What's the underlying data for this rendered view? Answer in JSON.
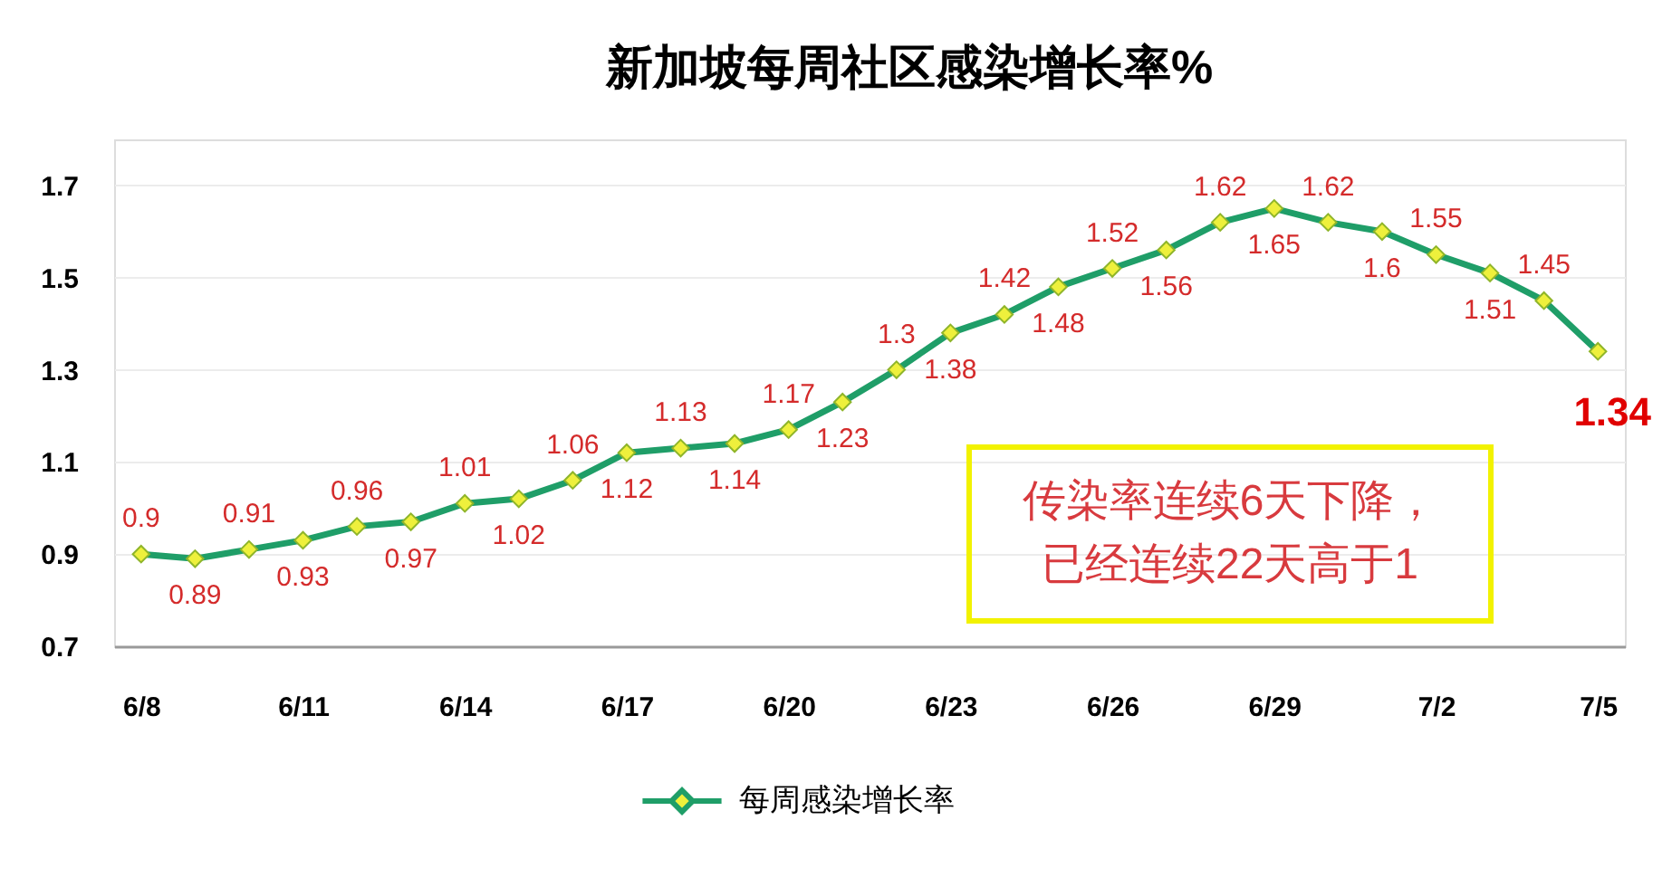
{
  "chart_data": {
    "type": "line",
    "title": "新加坡每周社区感染增长率%",
    "categories": [
      "6/8",
      null,
      null,
      "6/11",
      null,
      null,
      "6/14",
      null,
      null,
      "6/17",
      null,
      null,
      "6/20",
      null,
      null,
      "6/23",
      null,
      null,
      "6/26",
      null,
      null,
      "6/29",
      null,
      null,
      "7/2",
      null,
      null,
      "7/5"
    ],
    "series": [
      {
        "name": "每周感染增长率",
        "color": "#1f9e68",
        "values": [
          0.9,
          0.89,
          0.91,
          0.93,
          0.96,
          0.97,
          1.01,
          1.02,
          1.06,
          1.12,
          1.13,
          1.14,
          1.17,
          1.23,
          1.3,
          1.38,
          1.42,
          1.48,
          1.52,
          1.56,
          1.62,
          1.65,
          1.62,
          1.6,
          1.55,
          1.51,
          1.45,
          1.34
        ]
      }
    ],
    "ylim": [
      0.7,
      1.8
    ],
    "yticks": [
      0.7,
      0.9,
      1.1,
      1.3,
      1.5,
      1.7
    ],
    "grid": "y",
    "legend": "bottom",
    "marker": "diamond",
    "line_style": "solid",
    "data_labels": true,
    "annotations": [
      "传染率连续6天下降，",
      "已经连续22天高于1"
    ]
  }
}
